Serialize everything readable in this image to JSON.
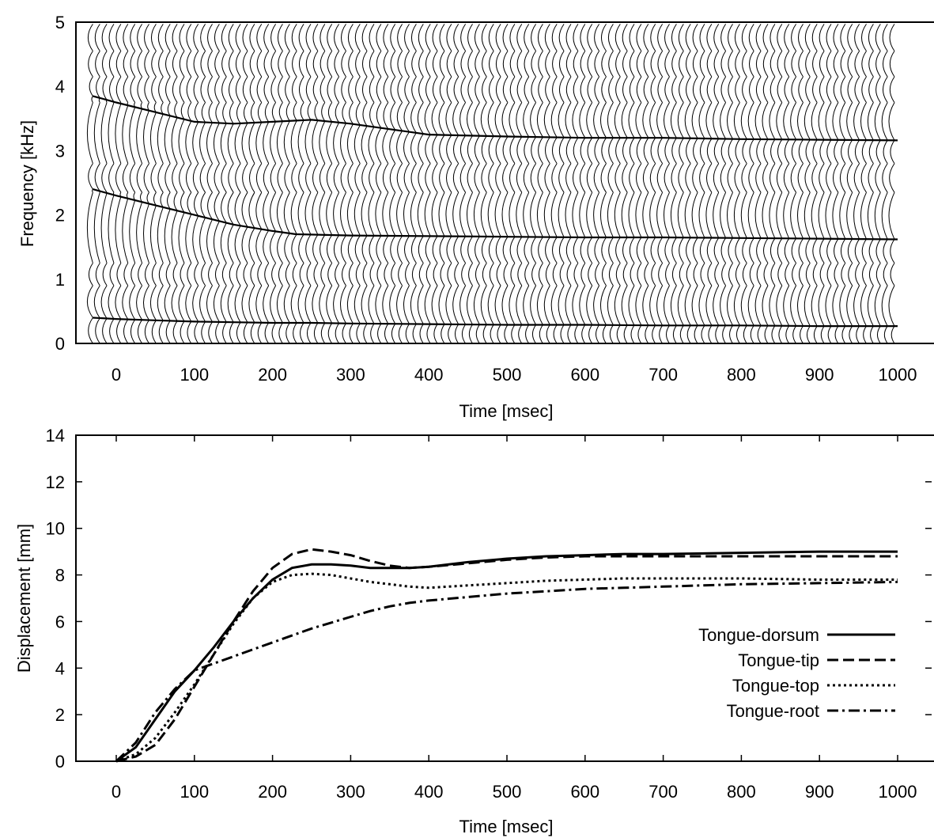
{
  "chart_data": [
    {
      "type": "line",
      "chart_kind": "formant-trajectory spectra (stacked spectral slices over time)",
      "xlabel": "Time [msec]",
      "ylabel": "Frequency [kHz]",
      "xlim": [
        -50,
        1000
      ],
      "ylim": [
        0,
        5
      ],
      "xticks": [
        "0",
        "100",
        "200",
        "300",
        "400",
        "500",
        "600",
        "700",
        "800",
        "900",
        "1000"
      ],
      "yticks": [
        "0",
        "1",
        "2",
        "3",
        "4",
        "5"
      ],
      "grid": false,
      "series": [
        {
          "x": [
            -30,
            0,
            50,
            100,
            150,
            200,
            250,
            300,
            400,
            500,
            600,
            700,
            800,
            900,
            1000
          ],
          "values": [
            0.4,
            0.38,
            0.36,
            0.34,
            0.33,
            0.32,
            0.32,
            0.31,
            0.3,
            0.29,
            0.29,
            0.28,
            0.28,
            0.27,
            0.27
          ]
        },
        {
          "x": [
            -30,
            0,
            50,
            100,
            150,
            200,
            230,
            300,
            400,
            500,
            600,
            700,
            800,
            900,
            1000
          ],
          "values": [
            2.4,
            2.3,
            2.15,
            2.0,
            1.85,
            1.75,
            1.7,
            1.68,
            1.67,
            1.66,
            1.65,
            1.65,
            1.64,
            1.63,
            1.62
          ]
        },
        {
          "x": [
            -30,
            0,
            50,
            100,
            150,
            200,
            250,
            300,
            400,
            500,
            600,
            700,
            800,
            900,
            1000
          ],
          "values": [
            3.85,
            3.75,
            3.6,
            3.45,
            3.42,
            3.45,
            3.48,
            3.42,
            3.25,
            3.22,
            3.2,
            3.2,
            3.18,
            3.17,
            3.16
          ]
        }
      ]
    },
    {
      "type": "line",
      "xlabel": "Time [msec]",
      "ylabel": "Displacement [mm]",
      "xlim": [
        -50,
        1000
      ],
      "ylim": [
        0,
        14
      ],
      "xticks": [
        "0",
        "100",
        "200",
        "300",
        "400",
        "500",
        "600",
        "700",
        "800",
        "900",
        "1000"
      ],
      "yticks": [
        "0",
        "2",
        "4",
        "6",
        "8",
        "10",
        "12",
        "14"
      ],
      "grid": false,
      "legend_position": "lower-right",
      "x": [
        0,
        25,
        50,
        75,
        100,
        125,
        150,
        175,
        200,
        225,
        250,
        275,
        300,
        325,
        350,
        375,
        400,
        450,
        500,
        550,
        600,
        650,
        700,
        800,
        900,
        1000
      ],
      "series": [
        {
          "name": "Tongue-dorsum",
          "line_style": "solid",
          "values": [
            0.0,
            0.6,
            1.8,
            3.0,
            3.9,
            4.9,
            6.0,
            7.0,
            7.8,
            8.3,
            8.45,
            8.45,
            8.4,
            8.3,
            8.3,
            8.3,
            8.35,
            8.55,
            8.7,
            8.8,
            8.85,
            8.9,
            8.9,
            8.95,
            9.0,
            9.0
          ]
        },
        {
          "name": "Tongue-tip",
          "line_style": "dashed",
          "values": [
            0.0,
            0.2,
            0.7,
            1.8,
            3.2,
            4.6,
            6.0,
            7.3,
            8.3,
            8.9,
            9.1,
            9.0,
            8.85,
            8.6,
            8.4,
            8.3,
            8.35,
            8.5,
            8.65,
            8.75,
            8.8,
            8.8,
            8.8,
            8.8,
            8.8,
            8.8
          ]
        },
        {
          "name": "Tongue-top",
          "line_style": "dotted",
          "values": [
            0.0,
            0.3,
            1.0,
            2.1,
            3.3,
            4.6,
            5.9,
            7.0,
            7.7,
            8.0,
            8.05,
            8.0,
            7.85,
            7.7,
            7.6,
            7.5,
            7.45,
            7.55,
            7.65,
            7.75,
            7.8,
            7.85,
            7.85,
            7.85,
            7.8,
            7.8
          ]
        },
        {
          "name": "Tongue-root",
          "line_style": "dash-dot",
          "values": [
            0.0,
            0.8,
            2.1,
            3.1,
            3.9,
            4.2,
            4.5,
            4.8,
            5.1,
            5.4,
            5.7,
            5.95,
            6.2,
            6.45,
            6.65,
            6.8,
            6.9,
            7.05,
            7.2,
            7.3,
            7.4,
            7.45,
            7.5,
            7.6,
            7.65,
            7.7
          ]
        }
      ]
    }
  ]
}
